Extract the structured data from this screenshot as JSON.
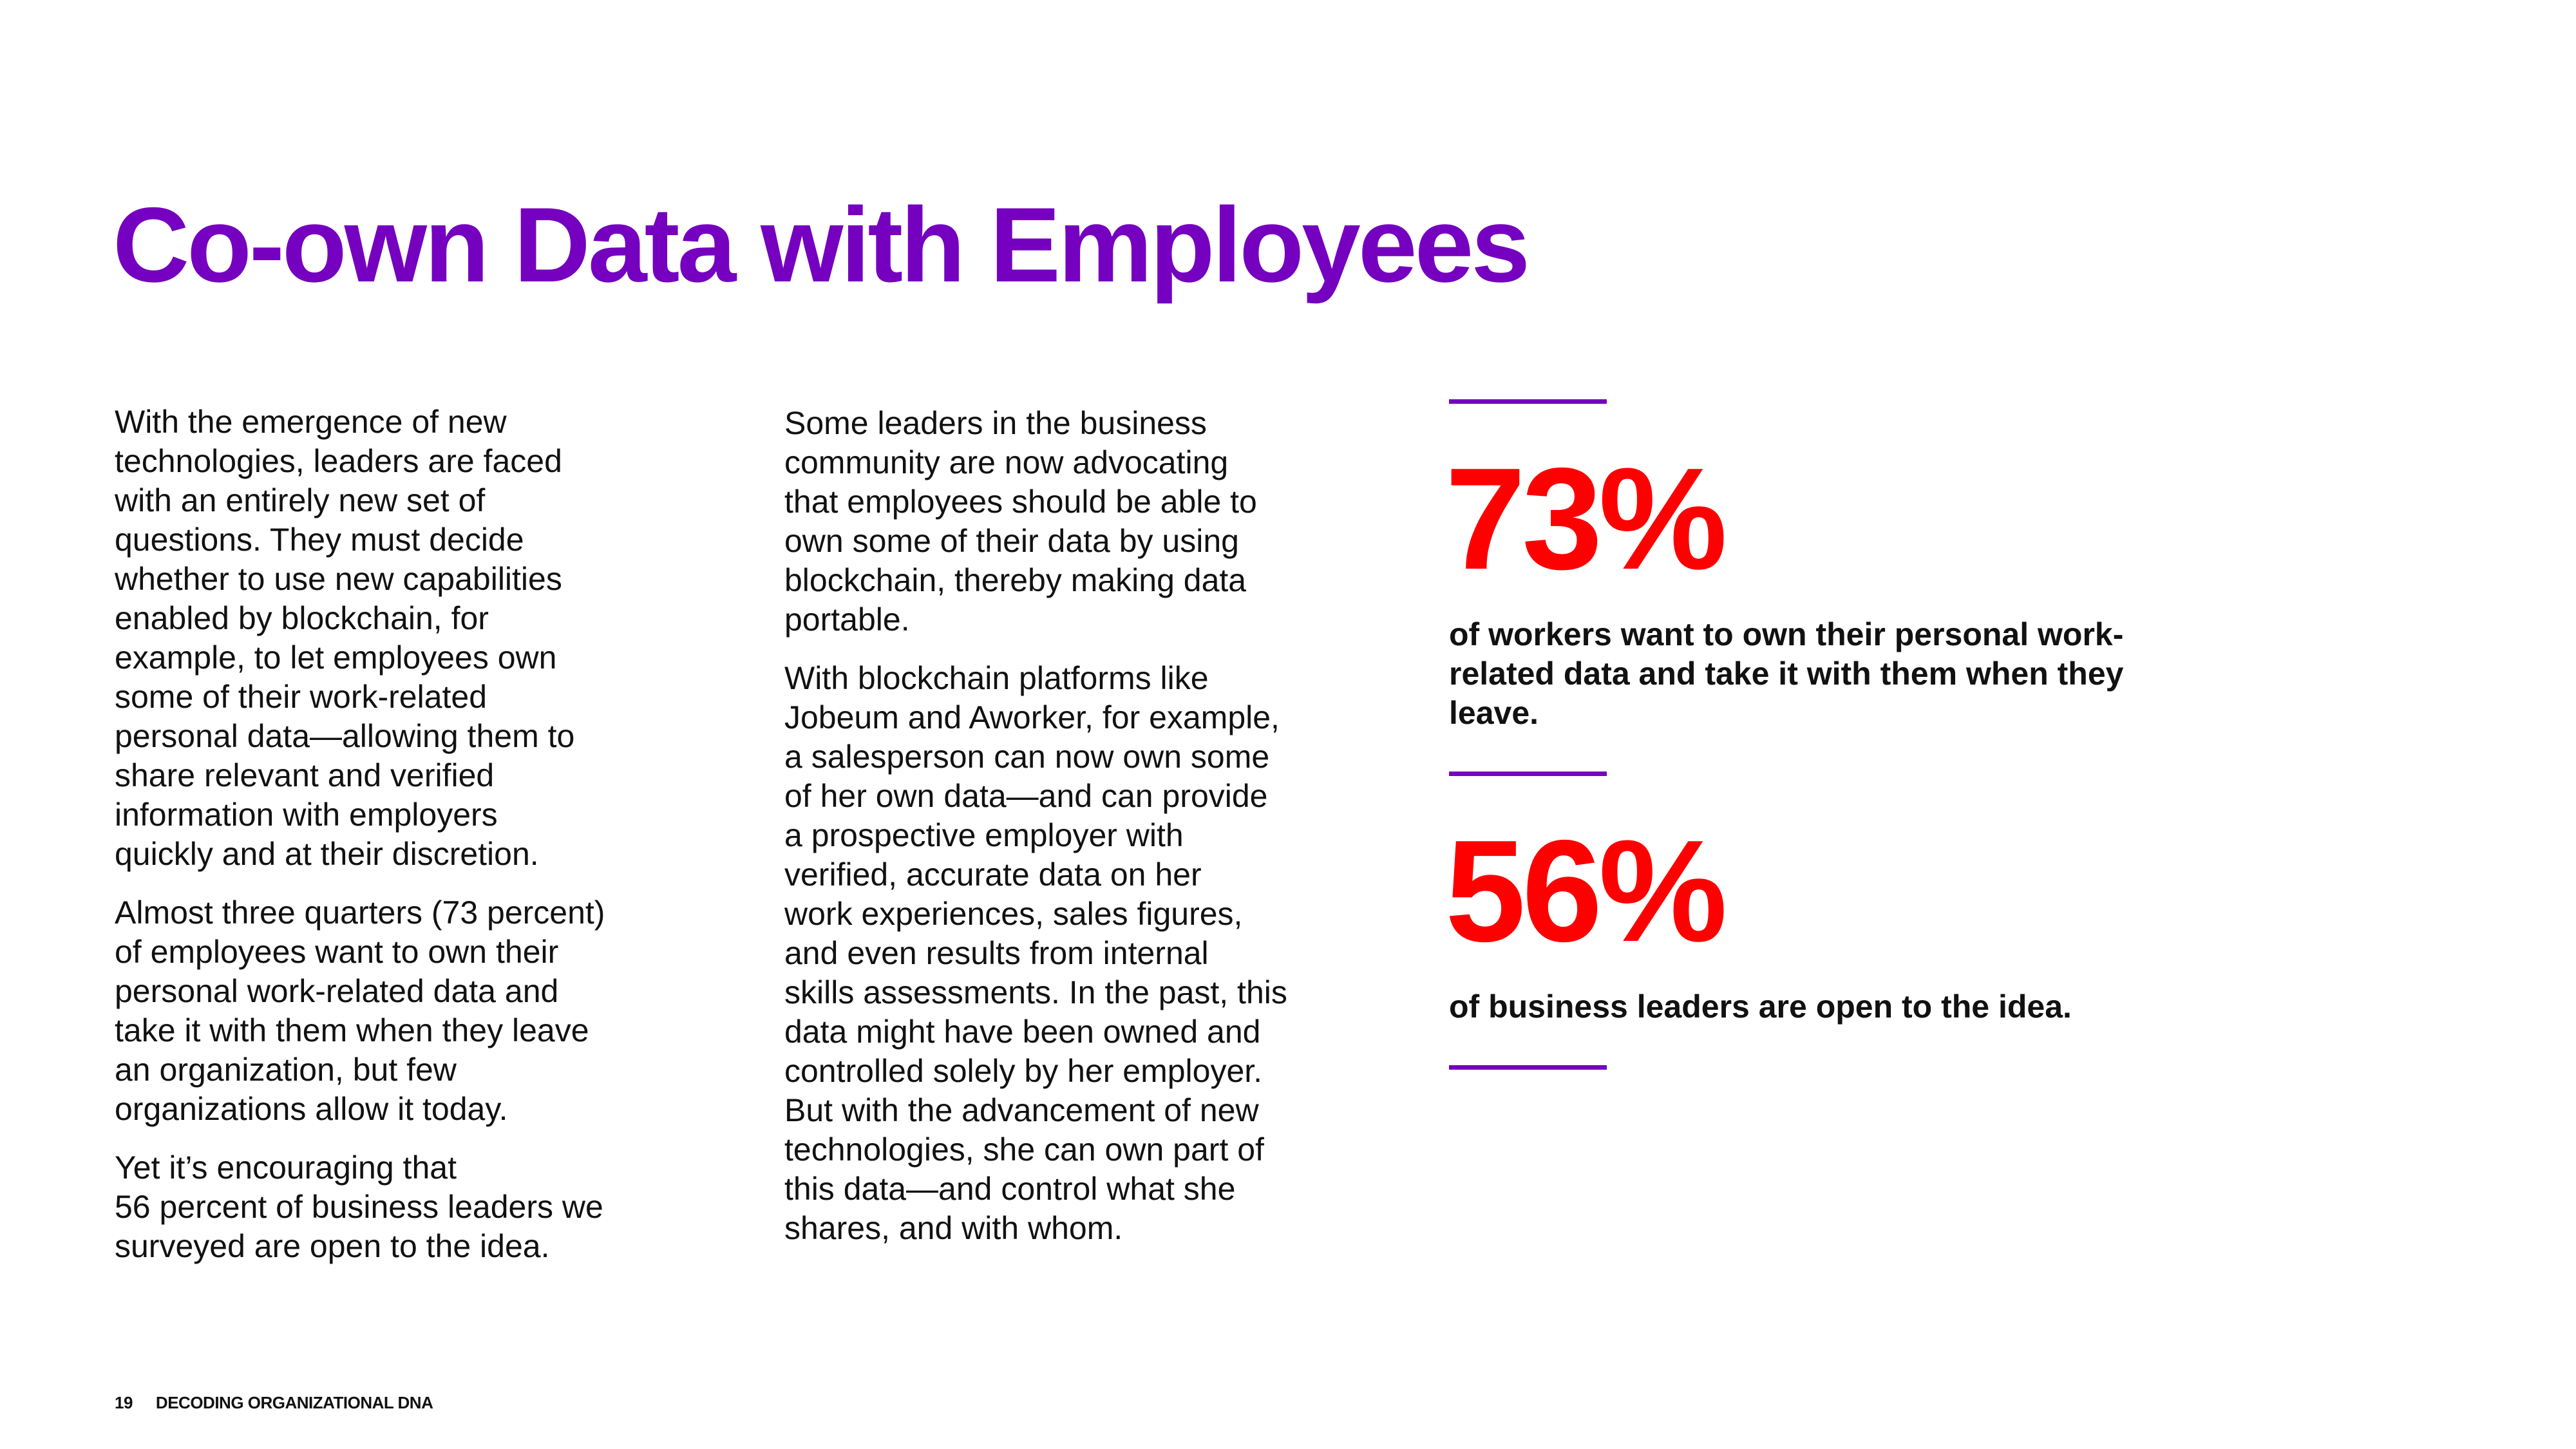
{
  "title": "Co-own Data with Employees",
  "column_1": {
    "paragraphs": [
      "With the emergence of new\ntechnologies, leaders are faced\nwith an entirely new set of\nquestions. They must decide\nwhether to use new capabilities\nenabled by blockchain, for\nexample, to let employees own\nsome of their work-related\npersonal data—allowing them to\nshare relevant and verified\ninformation with employers\nquickly and at their discretion.",
      "Almost three quarters (73 percent)\nof employees want to own their\npersonal work-related data and\ntake it with them when they leave\nan organization, but few\norganizations allow it today.",
      "Yet it’s encouraging that\n56 percent of business leaders we\nsurveyed are open to the idea."
    ]
  },
  "column_2": {
    "paragraphs": [
      "Some leaders in the business\ncommunity are now advocating\nthat employees should be able to\nown some of their data by using\nblockchain, thereby making data\nportable.",
      "With blockchain platforms like\nJobeum and Aworker, for example,\na salesperson can now own some\nof her own data—and can provide\na prospective employer with\nverified, accurate data on her\nwork experiences, sales figures,\nand even results from internal\nskills assessments. In the past, this\ndata might have been owned and\ncontrolled solely by her employer.\nBut with the advancement of new\ntechnologies, she can own part of\nthis data—and control what she\nshares, and with whom."
    ]
  },
  "stats": [
    {
      "value": "73%",
      "description": "of workers want to own their personal work-\nrelated data and take it with them when they\nleave."
    },
    {
      "value": "56%",
      "description": "of business leaders are open to the idea."
    }
  ],
  "footer": {
    "page_number": "19",
    "publication": "DECODING ORGANIZATIONAL DNA"
  },
  "colors": {
    "accent_purple": "#7500c0",
    "stat_red": "#ff0000",
    "text": "#111111"
  }
}
